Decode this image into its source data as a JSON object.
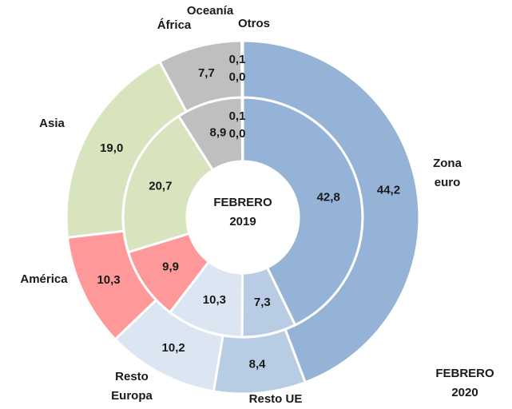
{
  "chart_data": {
    "type": "donut",
    "categories": [
      "Zona euro",
      "Resto UE",
      "Resto Europa",
      "América",
      "Asia",
      "África",
      "Oceanía",
      "Otros"
    ],
    "colors": [
      "#95b3d7",
      "#b8cce4",
      "#dce6f2",
      "#ff9999",
      "#d7e4bd",
      "#bfbfbf",
      "#bfbfbf",
      "#bfbfbf"
    ],
    "series": [
      {
        "name": "FEBRERO 2019",
        "values": [
          42.8,
          7.3,
          10.3,
          9.9,
          20.7,
          8.9,
          0.1,
          0.0
        ],
        "value_labels": [
          "42,8",
          "7,3",
          "10,3",
          "9,9",
          "20,7",
          "8,9",
          "0,1",
          "0,0"
        ]
      },
      {
        "name": "FEBRERO 2020",
        "values": [
          44.2,
          8.4,
          10.2,
          10.3,
          19.0,
          7.7,
          0.1,
          0.0
        ],
        "value_labels": [
          "44,2",
          "8,4",
          "10,2",
          "10,3",
          "19,0",
          "7,7",
          "0,1",
          "0,0"
        ]
      }
    ]
  }
}
